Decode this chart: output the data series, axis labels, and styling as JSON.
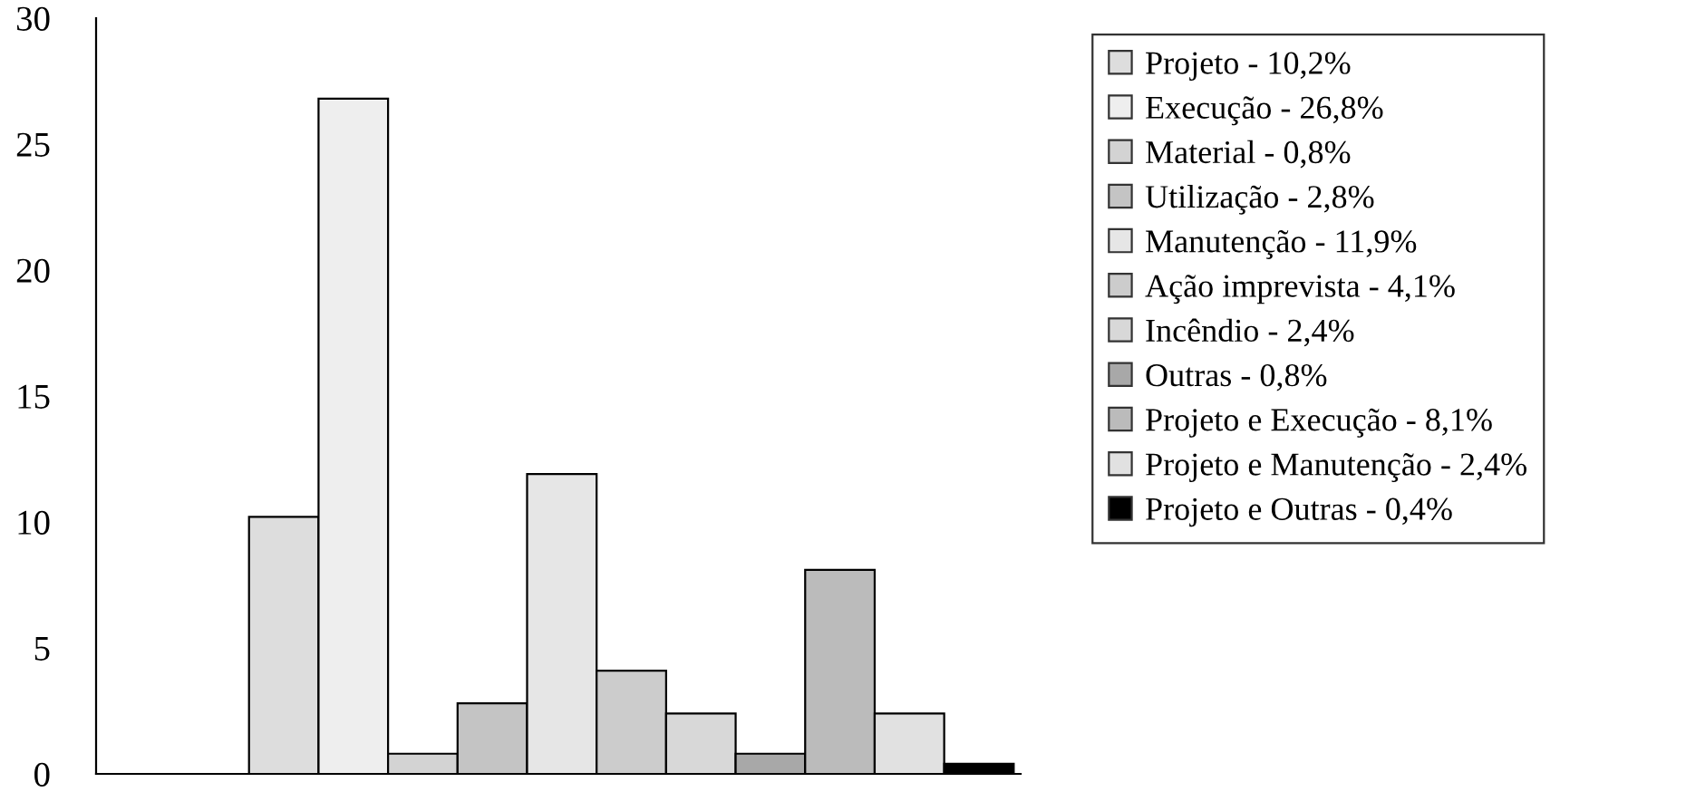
{
  "chart_data": {
    "type": "bar",
    "categories": [
      null
    ],
    "ylim": [
      0,
      30
    ],
    "yticks": [
      0,
      5,
      10,
      15,
      20,
      25,
      30
    ],
    "legend": "right",
    "grid": false,
    "series": [
      {
        "name": "Projeto - 10,2%",
        "color": "#dddddd",
        "values": [
          10.2
        ]
      },
      {
        "name": "Execução - 26,8%",
        "color": "#eeeeee",
        "values": [
          26.8
        ]
      },
      {
        "name": "Material - 0,8%",
        "color": "#d3d3d3",
        "values": [
          0.8
        ]
      },
      {
        "name": "Utilização - 2,8%",
        "color": "#c4c4c4",
        "values": [
          2.8
        ]
      },
      {
        "name": "Manutenção - 11,9%",
        "color": "#e6e6e6",
        "values": [
          11.9
        ]
      },
      {
        "name": "Ação imprevista - 4,1%",
        "color": "#cccccc",
        "values": [
          4.1
        ]
      },
      {
        "name": "Incêndio - 2,4%",
        "color": "#d8d8d8",
        "values": [
          2.4
        ]
      },
      {
        "name": "Outras - 0,8%",
        "color": "#a8a8a8",
        "values": [
          0.8
        ]
      },
      {
        "name": "Projeto e Execução - 8,1%",
        "color": "#bbbbbb",
        "values": [
          8.1
        ]
      },
      {
        "name": "Projeto e Manutenção - 2,4%",
        "color": "#e1e1e1",
        "values": [
          2.4
        ]
      },
      {
        "name": "Projeto e Outras - 0,4%",
        "color": "#000000",
        "values": [
          0.4
        ]
      }
    ]
  }
}
